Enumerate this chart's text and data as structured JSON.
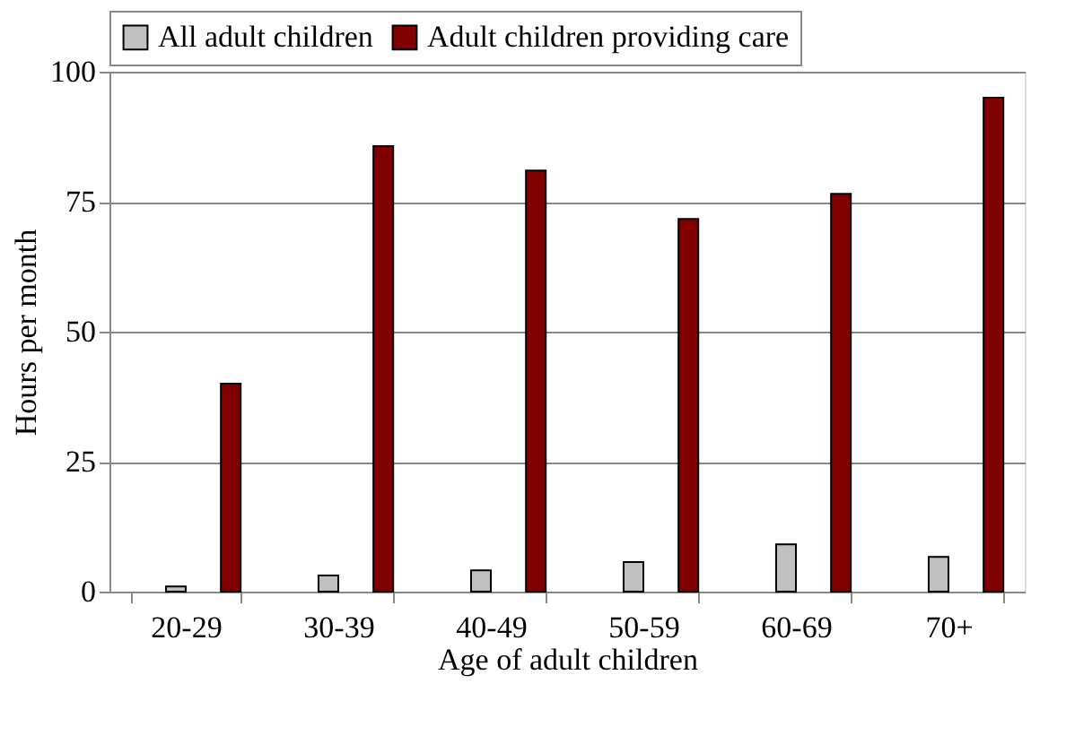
{
  "chart_data": {
    "type": "bar",
    "xlabel": "Age of adult children",
    "ylabel": "Hours per month",
    "categories": [
      "20-29",
      "30-39",
      "40-49",
      "50-59",
      "60-69",
      "70+"
    ],
    "series": [
      {
        "name": "All adult children",
        "color": "#c0c0c0",
        "values": [
          1.0,
          3.1,
          4.1,
          5.7,
          9.1,
          6.7
        ]
      },
      {
        "name": "Adult children providing care",
        "color": "#800000",
        "values": [
          40.0,
          85.7,
          81.0,
          71.7,
          76.5,
          95.0
        ]
      }
    ],
    "ylim": [
      0,
      100
    ],
    "yticks": [
      0,
      25,
      50,
      75,
      100
    ],
    "grid": "y",
    "legend": "top"
  }
}
